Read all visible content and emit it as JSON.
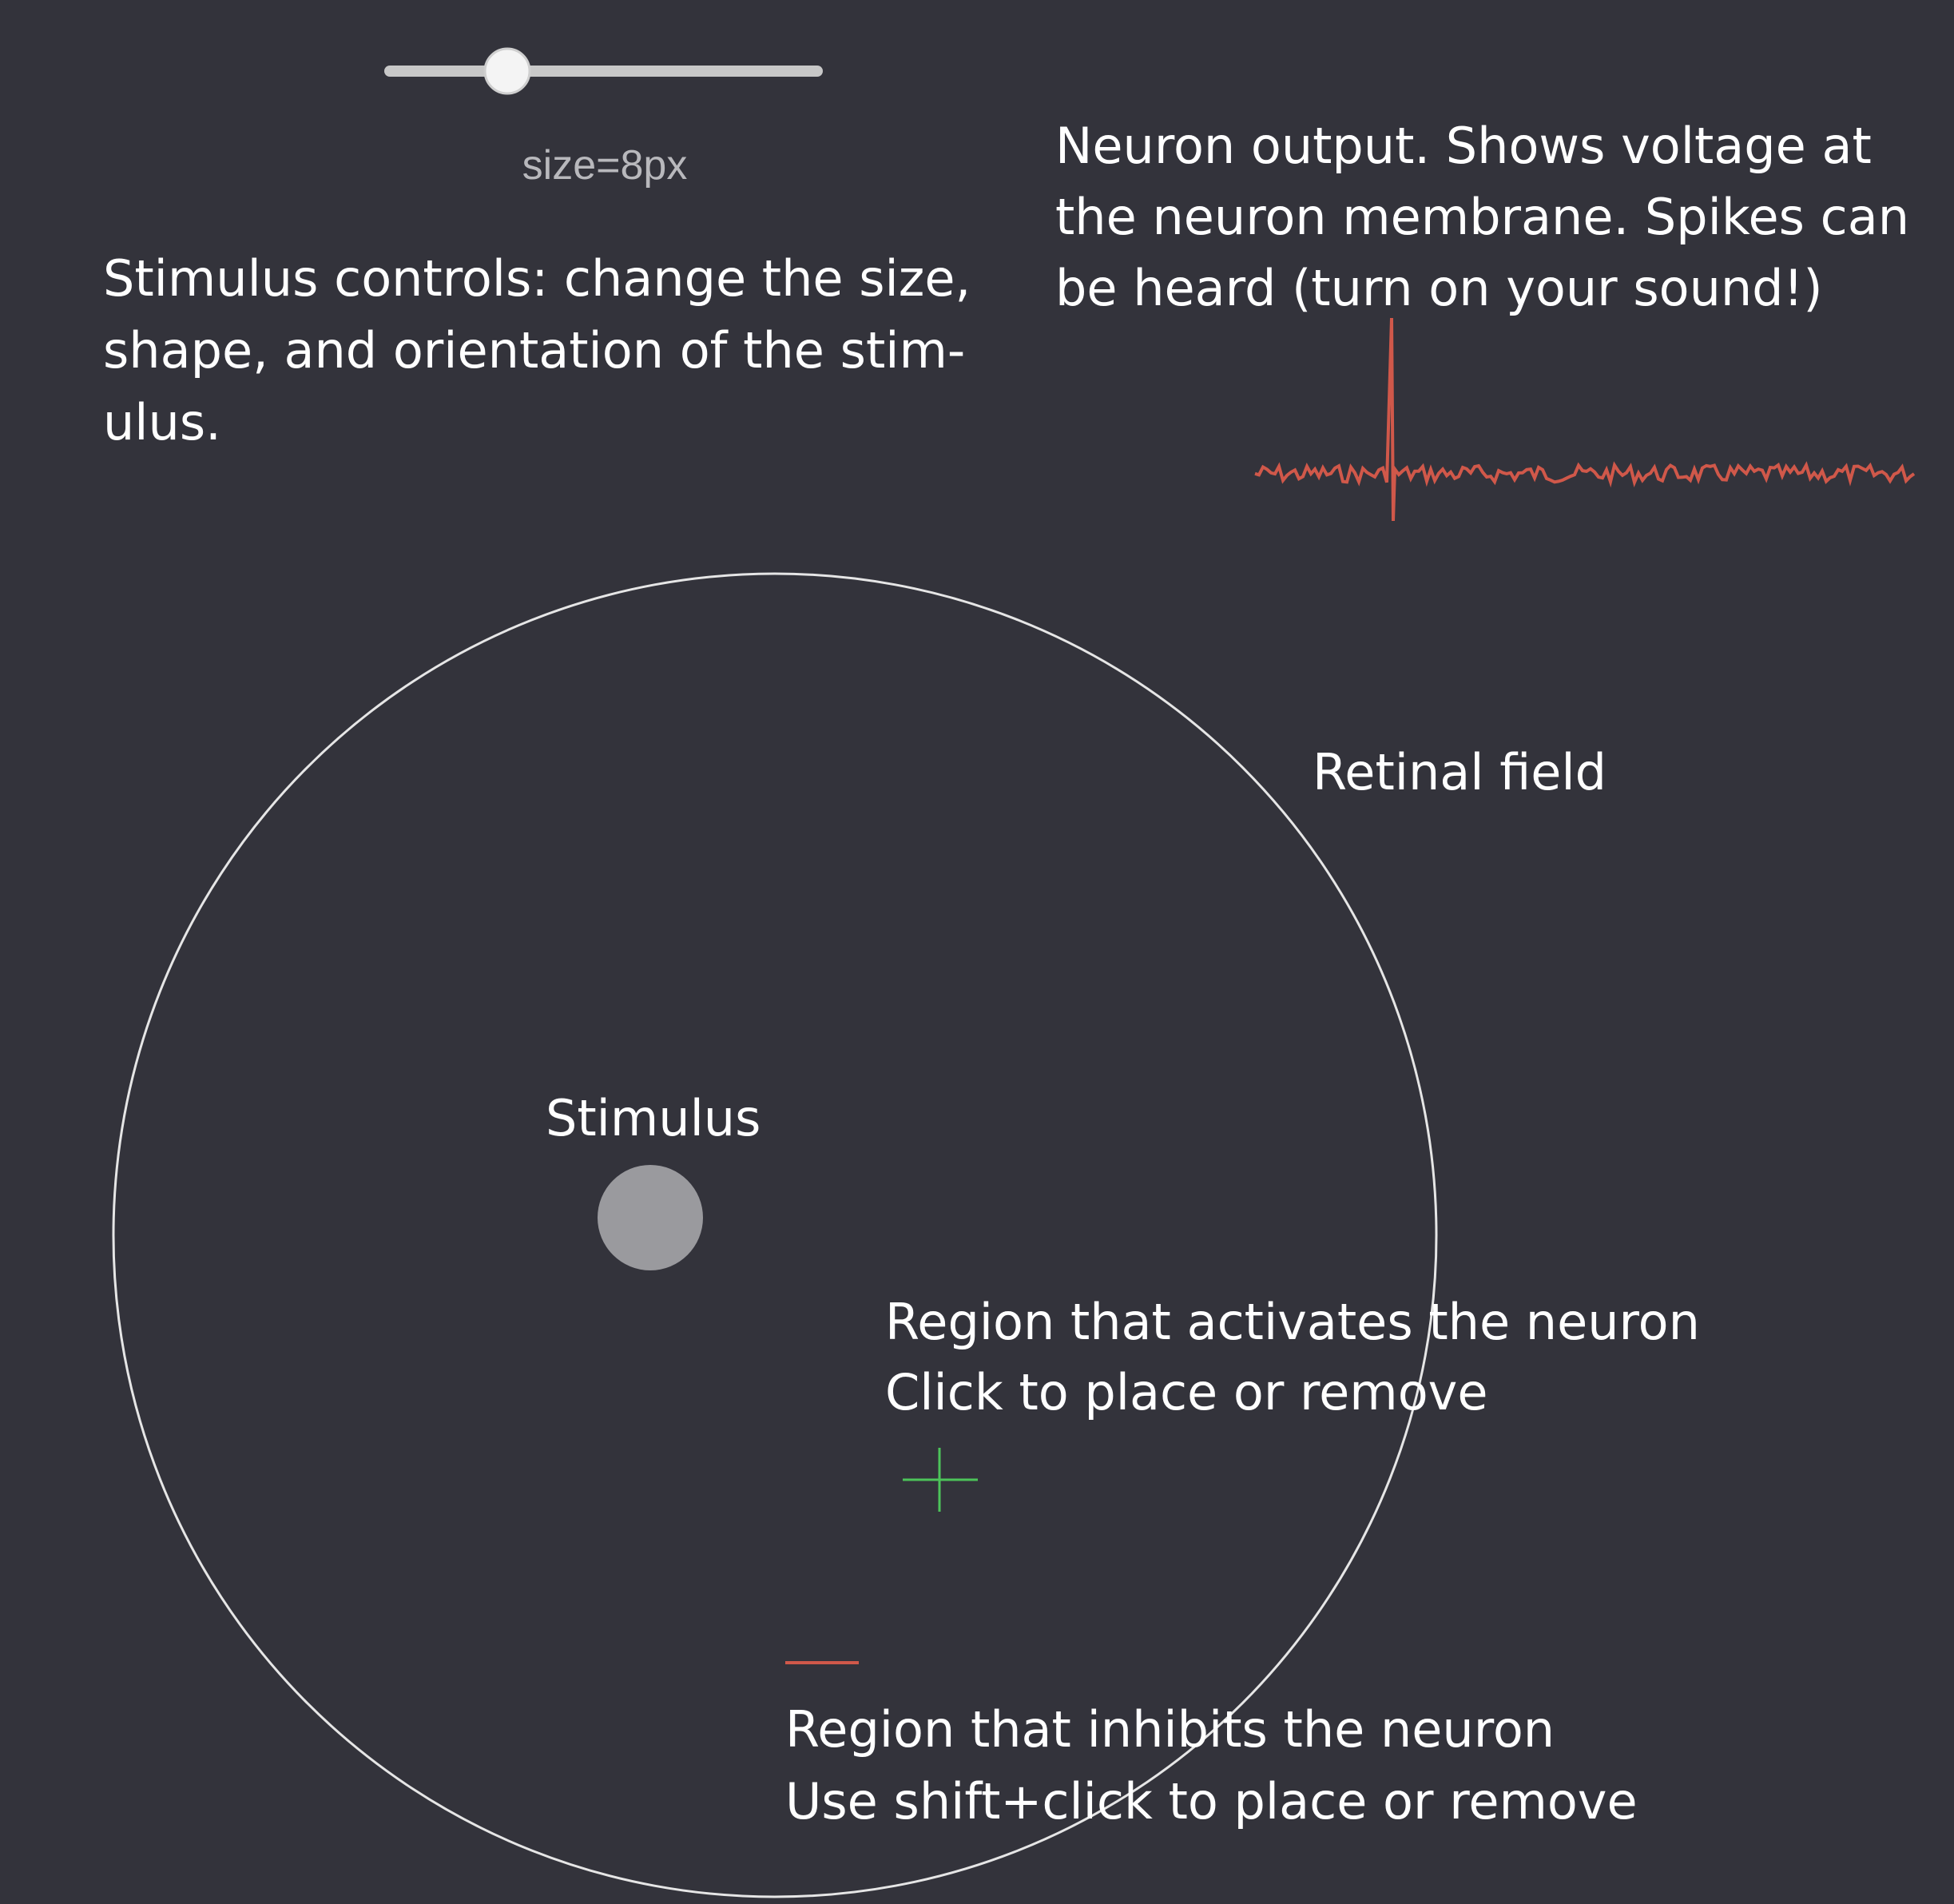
{
  "slider": {
    "label": "size=8px"
  },
  "annotations": {
    "stimulus_controls": [
      "Stimulus controls: change the size,",
      "shape, and orientation of the stim-",
      "ulus."
    ],
    "neuron_output": [
      "Neuron output. Shows voltage at",
      "the neuron membrane. Spikes can",
      "be heard (turn on your sound!)"
    ],
    "retinal_field": "Retinal field",
    "stimulus": "Stimulus",
    "activates": [
      "Region that activates the neuron",
      "Click to place or remove"
    ],
    "inhibits": [
      "Region that inhibits the neuron",
      "Use shift+click to place or remove"
    ]
  }
}
